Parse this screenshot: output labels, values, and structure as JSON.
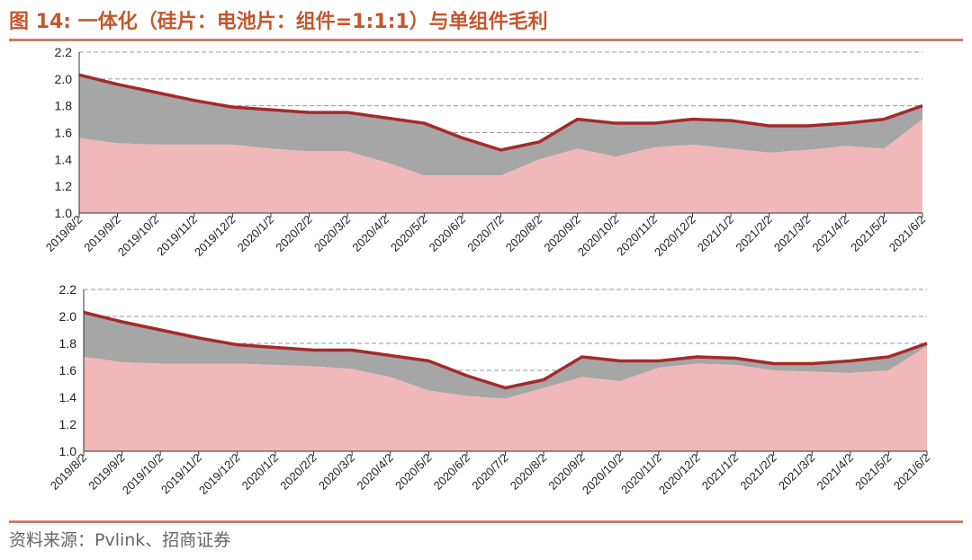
{
  "title": "图 14:  一体化（硅片：电池片：组件=1:1:1）与单组件毛利",
  "source": "资料来源：Pvlink、招商证券",
  "chart_data": [
    {
      "type": "area",
      "x": [
        "2019/8/2",
        "2019/9/2",
        "2019/10/2",
        "2019/11/2",
        "2019/12/2",
        "2020/1/2",
        "2020/2/2",
        "2020/3/2",
        "2020/4/2",
        "2020/5/2",
        "2020/6/2",
        "2020/7/2",
        "2020/8/2",
        "2020/9/2",
        "2020/10/2",
        "2020/11/2",
        "2020/12/2",
        "2021/1/2",
        "2021/2/2",
        "2021/3/2",
        "2021/4/2",
        "2021/5/2",
        "2021/6/2"
      ],
      "ylim": [
        1.0,
        2.2
      ],
      "yticks": [
        "1.0",
        "1.2",
        "1.4",
        "1.6",
        "1.8",
        "2.0",
        "2.2"
      ],
      "grid": "dashed horizontal",
      "colors": {
        "pink": "#f0b8b8",
        "gray": "#a6a6a6",
        "line": "#a52a2a"
      },
      "series": [
        {
          "values": [
            1.56,
            1.52,
            1.51,
            1.51,
            1.51,
            1.48,
            1.46,
            1.46,
            1.38,
            1.28,
            1.28,
            1.28,
            1.4,
            1.48,
            1.42,
            1.49,
            1.51,
            1.48,
            1.45,
            1.47,
            1.5,
            1.48,
            1.7
          ]
        },
        {
          "values": [
            2.03,
            1.96,
            1.9,
            1.84,
            1.79,
            1.77,
            1.75,
            1.75,
            1.71,
            1.67,
            1.56,
            1.47,
            1.53,
            1.7,
            1.67,
            1.67,
            1.7,
            1.69,
            1.65,
            1.65,
            1.67,
            1.7,
            1.8
          ]
        }
      ]
    },
    {
      "type": "area",
      "x": [
        "2019/8/2",
        "2019/9/2",
        "2019/10/2",
        "2019/11/2",
        "2019/12/2",
        "2020/1/2",
        "2020/2/2",
        "2020/3/2",
        "2020/4/2",
        "2020/5/2",
        "2020/6/2",
        "2020/7/2",
        "2020/8/2",
        "2020/9/2",
        "2020/10/2",
        "2020/11/2",
        "2020/12/2",
        "2021/1/2",
        "2021/2/2",
        "2021/3/2",
        "2021/4/2",
        "2021/5/2",
        "2021/6/2"
      ],
      "ylim": [
        1.0,
        2.2
      ],
      "yticks": [
        "1.0",
        "1.2",
        "1.4",
        "1.6",
        "1.8",
        "2.0",
        "2.2"
      ],
      "grid": "dashed horizontal",
      "colors": {
        "pink": "#f0b8b8",
        "gray": "#a6a6a6",
        "line": "#a52a2a"
      },
      "series": [
        {
          "values": [
            1.7,
            1.66,
            1.65,
            1.65,
            1.65,
            1.64,
            1.63,
            1.61,
            1.55,
            1.45,
            1.41,
            1.39,
            1.47,
            1.55,
            1.52,
            1.62,
            1.65,
            1.64,
            1.6,
            1.59,
            1.58,
            1.6,
            1.78
          ]
        },
        {
          "values": [
            2.03,
            1.96,
            1.9,
            1.84,
            1.79,
            1.77,
            1.75,
            1.75,
            1.71,
            1.67,
            1.56,
            1.47,
            1.53,
            1.7,
            1.67,
            1.67,
            1.7,
            1.69,
            1.65,
            1.65,
            1.67,
            1.7,
            1.8
          ]
        }
      ]
    }
  ]
}
